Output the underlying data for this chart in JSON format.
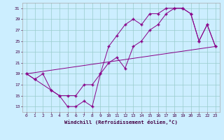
{
  "xlabel": "Windchill (Refroidissement éolien,°C)",
  "bg_color": "#cceeff",
  "grid_color": "#99cccc",
  "line_color": "#880088",
  "xlim": [
    -0.5,
    23.5
  ],
  "ylim": [
    12,
    32
  ],
  "xticks": [
    0,
    1,
    2,
    3,
    4,
    5,
    6,
    7,
    8,
    9,
    10,
    11,
    12,
    13,
    14,
    15,
    16,
    17,
    18,
    19,
    20,
    21,
    22,
    23
  ],
  "yticks": [
    13,
    15,
    17,
    19,
    21,
    23,
    25,
    27,
    29,
    31
  ],
  "series1_x": [
    0,
    1,
    3,
    4,
    5,
    6,
    7,
    8,
    9,
    10,
    11,
    12,
    13,
    14,
    15,
    16,
    17,
    18,
    19,
    20,
    21,
    22,
    23
  ],
  "series1_y": [
    19,
    18,
    16,
    15,
    13,
    13,
    14,
    13,
    19,
    24,
    26,
    28,
    29,
    28,
    30,
    30,
    31,
    31,
    31,
    30,
    25,
    28,
    24
  ],
  "series2_x": [
    0,
    1,
    2,
    3,
    4,
    5,
    6,
    7,
    8,
    9,
    10,
    11,
    12,
    13,
    14,
    15,
    16,
    17,
    18,
    19,
    20,
    21,
    22,
    23
  ],
  "series2_y": [
    19,
    18,
    19,
    16,
    15,
    15,
    15,
    17,
    17,
    19,
    21,
    22,
    20,
    24,
    25,
    27,
    28,
    30,
    31,
    31,
    30,
    25,
    28,
    24
  ],
  "series3_x": [
    0,
    23
  ],
  "series3_y": [
    19,
    24
  ]
}
